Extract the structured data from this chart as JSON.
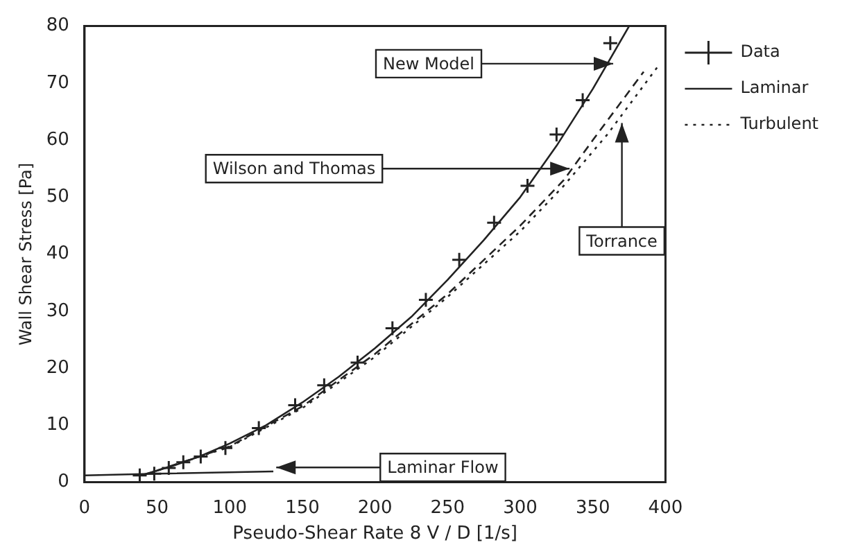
{
  "chart_data": {
    "type": "line",
    "xlabel": "Pseudo-Shear Rate 8 V / D [1/s]",
    "ylabel": "Wall Shear Stress [Pa]",
    "xlim": [
      0,
      400
    ],
    "xticks": [
      0,
      50,
      100,
      150,
      200,
      250,
      300,
      350,
      400
    ],
    "ylim": [
      0,
      80
    ],
    "yticks": [
      0,
      10,
      20,
      30,
      40,
      50,
      60,
      70,
      80
    ],
    "grid": false,
    "legend": "right",
    "series": [
      {
        "name": "Data",
        "type": "scatter",
        "marker": "cross",
        "color": "#222222",
        "x": [
          38,
          48,
          58,
          68,
          80,
          97,
          120,
          145,
          165,
          188,
          212,
          235,
          258,
          282,
          305,
          325,
          343,
          362
        ],
        "values": [
          1.2,
          1.5,
          2.5,
          3.5,
          4.5,
          6,
          9.5,
          13.5,
          17,
          21,
          27,
          32,
          39,
          45.5,
          52,
          61,
          67,
          77
        ]
      },
      {
        "name": "Laminar",
        "line_style": "solid",
        "color": "#222222",
        "x": [
          0,
          50,
          130
        ],
        "values": [
          1.2,
          1.5,
          1.9
        ]
      },
      {
        "line_style": "solid",
        "color": "#222222",
        "x": [
          40,
          60,
          80,
          100,
          125,
          150,
          175,
          200,
          225,
          250,
          275,
          300,
          325,
          350,
          375
        ],
        "values": [
          1.3,
          2.8,
          4.6,
          6.8,
          10,
          14,
          18.5,
          23.5,
          29,
          35.5,
          42.5,
          50,
          59,
          69,
          80
        ]
      },
      {
        "line_style": "dashed",
        "color": "#222222",
        "x": [
          40,
          100,
          150,
          200,
          250,
          300,
          330,
          350,
          385
        ],
        "values": [
          1.2,
          6.3,
          13.3,
          22.5,
          33,
          45,
          53,
          60,
          72
        ]
      },
      {
        "name": "Turbulent",
        "line_style": "dotted",
        "color": "#222222",
        "x": [
          40,
          100,
          150,
          200,
          250,
          300,
          330,
          360,
          395
        ],
        "values": [
          1.2,
          6.2,
          13,
          22,
          32.5,
          44,
          52,
          61,
          73
        ]
      }
    ],
    "annotations": [
      {
        "text": "New Model",
        "x": 364,
        "y": 73.4
      },
      {
        "text": "Wilson and Thomas",
        "x": 334,
        "y": 55
      },
      {
        "text": "Torrance",
        "x": 370,
        "y": 63
      },
      {
        "text": "Laminar Flow",
        "x": 132,
        "y": 2.6
      }
    ]
  }
}
